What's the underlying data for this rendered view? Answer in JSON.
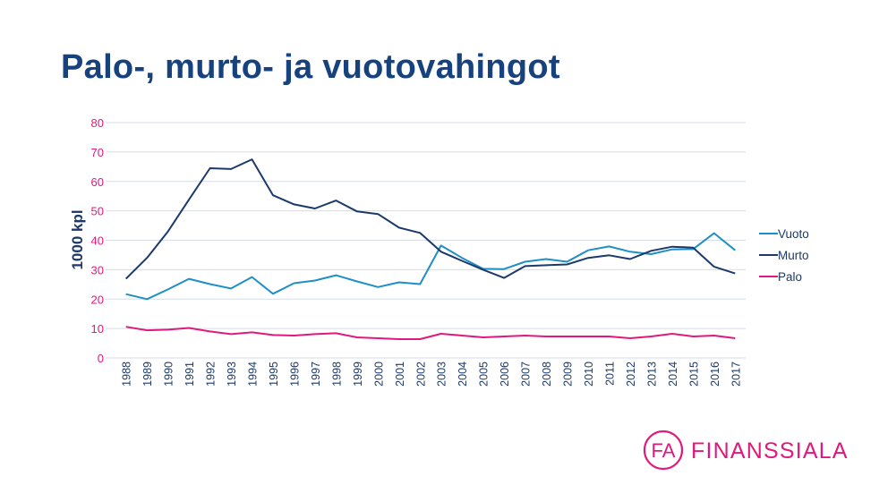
{
  "title": "Palo-, murto- ja vuotovahingot",
  "logo_text": "FINANSSIALA",
  "logo_mark": "FA",
  "colors": {
    "title": "#17427e",
    "axis_ticks": "#e0197d",
    "grid": "#d5dde8",
    "brand": "#e0197d"
  },
  "chart_data": {
    "type": "line",
    "title": "",
    "xlabel": "",
    "ylabel": "1000 kpl",
    "ylim": [
      0,
      80
    ],
    "yticks": [
      0,
      10,
      20,
      30,
      40,
      50,
      60,
      70,
      80
    ],
    "grid": true,
    "legend": "right",
    "categories": [
      "1988",
      "1989",
      "1990",
      "1991",
      "1992",
      "1993",
      "1994",
      "1995",
      "1996",
      "1997",
      "1998",
      "1999",
      "2000",
      "2001",
      "2002",
      "2003",
      "2004",
      "2005",
      "2006",
      "2007",
      "2008",
      "2009",
      "2010",
      "2011",
      "2012",
      "2013",
      "2014",
      "2015",
      "2016",
      "2017"
    ],
    "series": [
      {
        "name": "Vuoto",
        "color": "#1f8fc7",
        "values": [
          21.7,
          20.0,
          23.3,
          26.9,
          25.1,
          23.6,
          27.5,
          21.8,
          25.4,
          26.3,
          28.1,
          26.0,
          24.1,
          25.7,
          25.1,
          38.2,
          34.0,
          30.3,
          30.2,
          32.7,
          33.6,
          32.7,
          36.6,
          37.9,
          36.1,
          35.3,
          36.9,
          37.0,
          42.4,
          36.6
        ]
      },
      {
        "name": "Murto",
        "color": "#1b3a6b",
        "values": [
          26.9,
          34.0,
          43.0,
          53.8,
          64.5,
          64.2,
          67.5,
          55.3,
          52.2,
          50.8,
          53.5,
          49.8,
          48.9,
          44.3,
          42.5,
          36.1,
          33.0,
          30.0,
          27.2,
          31.2,
          31.5,
          31.8,
          34.0,
          34.9,
          33.6,
          36.4,
          37.8,
          37.5,
          31.0,
          28.7
        ]
      },
      {
        "name": "Palo",
        "color": "#e0197d",
        "values": [
          10.6,
          9.4,
          9.6,
          10.2,
          9.0,
          8.1,
          8.7,
          7.8,
          7.6,
          8.1,
          8.4,
          7.0,
          6.7,
          6.4,
          6.4,
          8.2,
          7.6,
          7.0,
          7.3,
          7.6,
          7.3,
          7.3,
          7.3,
          7.3,
          6.7,
          7.3,
          8.2,
          7.3,
          7.6,
          6.7
        ]
      }
    ]
  }
}
